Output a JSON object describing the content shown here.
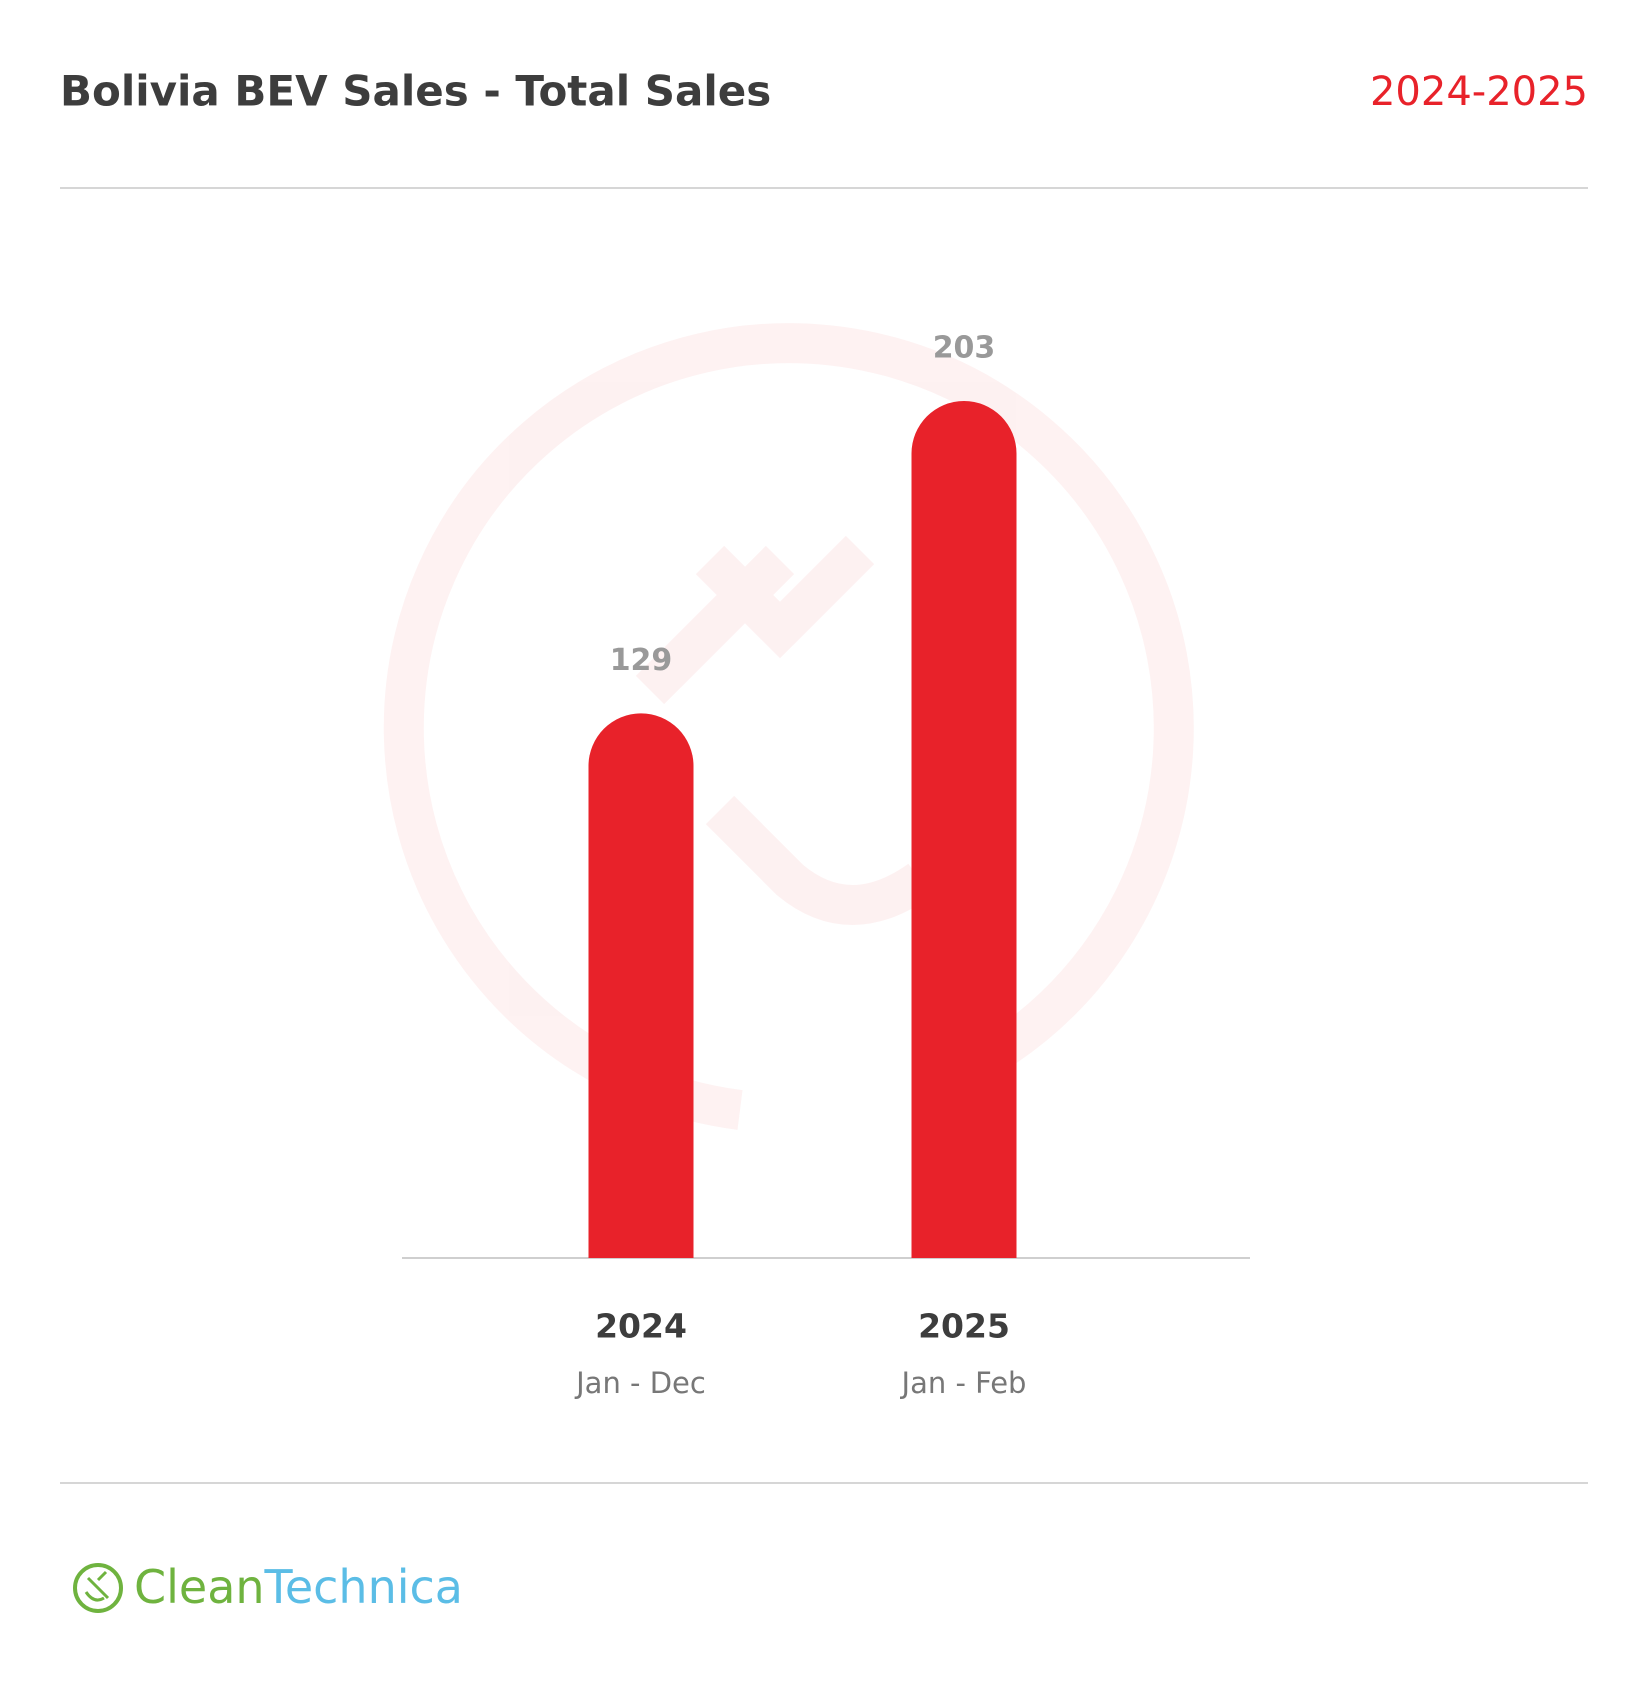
{
  "chart_data": {
    "type": "bar",
    "title": "Bolivia BEV Sales - Total Sales",
    "subtitle": "2024-2025",
    "categories": [
      "2024",
      "2025"
    ],
    "sublabels": [
      "Jan - Dec",
      "Jan - Feb"
    ],
    "values": [
      129,
      203
    ],
    "color": "#e8222a"
  },
  "brand": {
    "first": "Clean",
    "second": "Technica"
  }
}
